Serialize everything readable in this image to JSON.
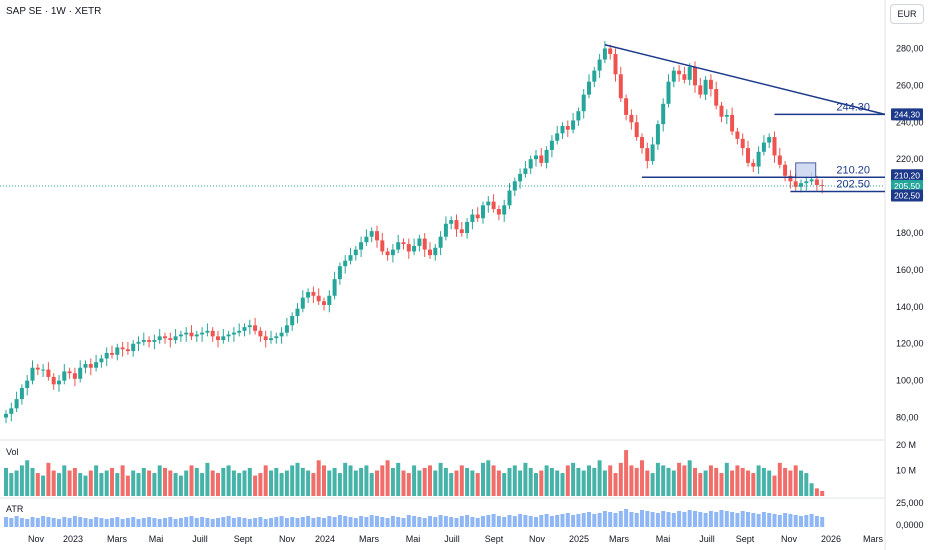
{
  "header": {
    "title": "SAP SE · 1W · XETR",
    "currency": "EUR"
  },
  "volume_pane": {
    "label": "Vol",
    "ticks": [
      "20 M",
      "10 M"
    ]
  },
  "atr_pane": {
    "label": "ATR",
    "ticks": [
      "25,000",
      "0,0000"
    ]
  },
  "colors": {
    "up": "#26a69a",
    "down": "#ef5350",
    "trend": "#1d3a8a",
    "atr": "#90b7f5",
    "hline": "#1d3a8a"
  },
  "chart_data": {
    "type": "candlestick",
    "price_axis": {
      "ticks": [
        "280,00",
        "260,00",
        "240,00",
        "220,00",
        "200,00",
        "180,00",
        "160,00",
        "140,00",
        "120,00",
        "100,00",
        "80,00"
      ],
      "ylim": [
        70,
        290
      ]
    },
    "x_ticks": [
      "Nov",
      "2023",
      "Mars",
      "Mai",
      "Juill",
      "Sept",
      "Nov",
      "2024",
      "Mars",
      "Mai",
      "Juill",
      "Sept",
      "Nov",
      "2025",
      "Mars",
      "Mai",
      "Juill",
      "Sept",
      "Nov",
      "2026",
      "Mars"
    ],
    "price_labels": [
      {
        "text": "244,30",
        "value": 244.3,
        "style": "dark"
      },
      {
        "text": "210,20",
        "value": 210.2,
        "style": "dark"
      },
      {
        "text": "205,50",
        "value": 205.5,
        "style": "green"
      },
      {
        "text": "202,50",
        "value": 202.5,
        "style": "dark"
      }
    ],
    "annotations": [
      {
        "text": "244.30",
        "value": 244.3
      },
      {
        "text": "210.20",
        "value": 210.2
      },
      {
        "text": "202.50",
        "value": 202.5
      }
    ],
    "close": [
      82,
      85,
      90,
      96,
      100,
      107,
      106,
      106,
      102,
      98,
      100,
      105,
      104,
      101,
      107,
      109,
      107,
      110,
      112,
      115,
      114,
      118,
      117,
      116,
      120,
      121,
      122,
      121,
      122,
      124,
      123,
      122,
      124,
      125,
      126,
      124,
      125,
      126,
      127,
      124,
      122,
      124,
      125,
      126,
      127,
      129,
      130,
      127,
      124,
      122,
      123,
      124,
      126,
      130,
      135,
      139,
      145,
      148,
      146,
      143,
      141,
      146,
      155,
      162,
      165,
      168,
      171,
      175,
      178,
      181,
      176,
      170,
      168,
      171,
      175,
      174,
      170,
      173,
      177,
      171,
      168,
      172,
      178,
      185,
      187,
      182,
      180,
      186,
      190,
      188,
      195,
      197,
      193,
      190,
      195,
      203,
      208,
      212,
      215,
      220,
      222,
      218,
      225,
      230,
      234,
      238,
      236,
      241,
      246,
      255,
      262,
      268,
      274,
      280,
      277,
      266,
      253,
      244,
      240,
      232,
      226,
      219,
      228,
      239,
      250,
      262,
      268,
      266,
      263,
      270,
      260,
      255,
      263,
      258,
      249,
      243,
      244,
      235,
      231,
      226,
      218,
      216,
      224,
      229,
      232,
      222,
      217,
      211,
      208,
      205,
      207,
      208,
      209,
      206,
      205.5
    ],
    "volume_millions": [
      11,
      9,
      10,
      12,
      14,
      11,
      9,
      8,
      13,
      10,
      9,
      12,
      10,
      11,
      9,
      8,
      10,
      12,
      9,
      10,
      11,
      9,
      12,
      8,
      10,
      9,
      11,
      10,
      9,
      12,
      11,
      10,
      9,
      8,
      10,
      12,
      11,
      9,
      13,
      10,
      9,
      11,
      12,
      10,
      9,
      10,
      11,
      8,
      9,
      12,
      10,
      11,
      9,
      10,
      12,
      13,
      11,
      10,
      9,
      14,
      12,
      10,
      11,
      9,
      13,
      12,
      10,
      11,
      12,
      9,
      10,
      12,
      14,
      11,
      13,
      10,
      9,
      12,
      10,
      11,
      12,
      10,
      13,
      11,
      9,
      10,
      12,
      11,
      10,
      9,
      13,
      14,
      12,
      10,
      9,
      11,
      12,
      10,
      13,
      11,
      9,
      10,
      12,
      11,
      10,
      9,
      12,
      13,
      11,
      10,
      12,
      11,
      14,
      10,
      12,
      9,
      13,
      18,
      12,
      11,
      14,
      10,
      9,
      13,
      12,
      11,
      10,
      13,
      12,
      14,
      11,
      9,
      10,
      12,
      11,
      9,
      13,
      10,
      12,
      11,
      10,
      9,
      12,
      11,
      10,
      8,
      13,
      11,
      10,
      12,
      10,
      9,
      5,
      3,
      2
    ],
    "atr": [
      10,
      9,
      11,
      9,
      8,
      10,
      9,
      11,
      10,
      9,
      8,
      10,
      9,
      11,
      10,
      9,
      8,
      10,
      9,
      8,
      9,
      10,
      8,
      9,
      10,
      8,
      9,
      10,
      9,
      8,
      9,
      10,
      8,
      9,
      10,
      11,
      9,
      10,
      9,
      8,
      9,
      10,
      11,
      9,
      10,
      9,
      8,
      9,
      10,
      8,
      9,
      10,
      11,
      9,
      10,
      9,
      10,
      11,
      9,
      10,
      9,
      11,
      10,
      12,
      11,
      10,
      9,
      11,
      10,
      12,
      11,
      10,
      9,
      11,
      10,
      9,
      12,
      11,
      10,
      9,
      11,
      10,
      12,
      11,
      10,
      9,
      11,
      12,
      10,
      9,
      11,
      12,
      13,
      11,
      10,
      12,
      11,
      13,
      12,
      11,
      10,
      12,
      13,
      11,
      12,
      13,
      14,
      12,
      13,
      14,
      15,
      13,
      14,
      16,
      15,
      14,
      16,
      18,
      15,
      14,
      17,
      16,
      15,
      14,
      16,
      15,
      14,
      16,
      15,
      17,
      16,
      15,
      14,
      16,
      15,
      17,
      16,
      15,
      14,
      16,
      15,
      14,
      13,
      15,
      14,
      13,
      12,
      14,
      13,
      12,
      11,
      12,
      13,
      11,
      10
    ]
  }
}
